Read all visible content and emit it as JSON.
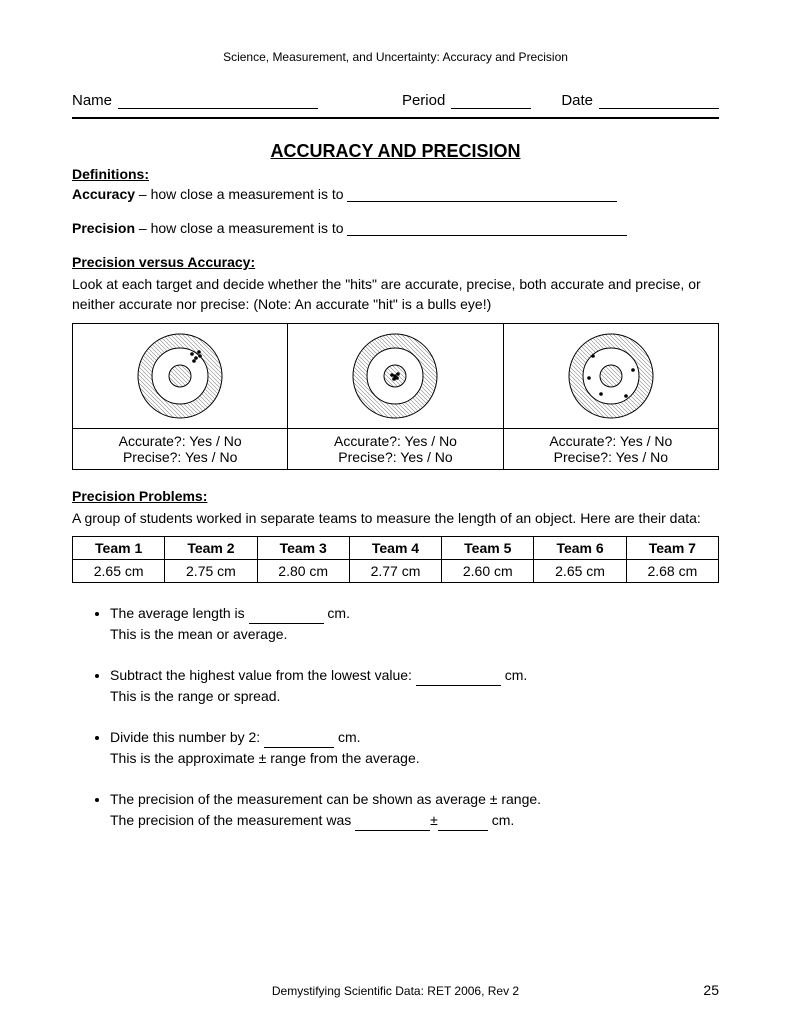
{
  "header": "Science, Measurement, and Uncertainty: Accuracy and Precision",
  "nameRow": {
    "name": "Name",
    "period": "Period",
    "date": "Date"
  },
  "title": "ACCURACY AND PRECISION",
  "definitions": {
    "label": "Definitions:",
    "accuracy_term": "Accuracy",
    "accuracy_text": " – how close a measurement is to ",
    "precision_term": "Precision",
    "precision_text": " – how close a measurement is to "
  },
  "pva": {
    "label": "Precision versus Accuracy:",
    "text": "Look at each target and decide whether the \"hits\" are accurate, precise, both accurate and precise, or neither accurate nor precise:  (Note: An accurate \"hit\" is a bulls eye!)"
  },
  "targets": {
    "svg": {
      "outer_r": 42,
      "mid_r": 28,
      "inner_r": 11,
      "fill_outer": "#d0d0d0",
      "fill_mid": "#ffffff",
      "fill_inner": "#d0d0d0",
      "stroke": "#000000"
    },
    "hits": [
      [
        [
          12,
          -22
        ],
        [
          16,
          -18
        ],
        [
          20,
          -20
        ],
        [
          14,
          -15
        ],
        [
          19,
          -24
        ]
      ],
      [
        [
          -3,
          -1
        ],
        [
          2,
          2
        ],
        [
          -1,
          3
        ],
        [
          3,
          -2
        ],
        [
          0,
          0
        ]
      ],
      [
        [
          -18,
          -20
        ],
        [
          22,
          -6
        ],
        [
          -10,
          18
        ],
        [
          15,
          20
        ],
        [
          -22,
          2
        ]
      ]
    ],
    "q_accurate": "Accurate?:  Yes  /  No",
    "q_precise": "Precise?:    Yes  /  No"
  },
  "problems": {
    "label": "Precision Problems:",
    "intro": "A group of students worked in separate teams to measure the length of an object.  Here are their data:",
    "columns": [
      "Team 1",
      "Team 2",
      "Team 3",
      "Team 4",
      "Team 5",
      "Team 6",
      "Team 7"
    ],
    "row": [
      "2.65 cm",
      "2.75 cm",
      "2.80 cm",
      "2.77 cm",
      "2.60 cm",
      "2.65 cm",
      "2.68 cm"
    ]
  },
  "bullets": {
    "b1a": "The average length is ",
    "b1b": " cm.",
    "b1c": "This is the mean or average.",
    "b2a": "Subtract the highest value from the lowest value: ",
    "b2b": " cm.",
    "b2c": "This is the range or spread.",
    "b3a": "Divide this number by 2: ",
    "b3b": " cm.",
    "b3c": "This is the approximate ± range from the average.",
    "b4a": "The precision of the measurement can be shown as average ± range.",
    "b4b": "The precision of the measurement was ",
    "b4c": "±",
    "b4d": " cm."
  },
  "footer": {
    "text": "Demystifying Scientific Data: RET 2006, Rev 2",
    "page": "25"
  }
}
